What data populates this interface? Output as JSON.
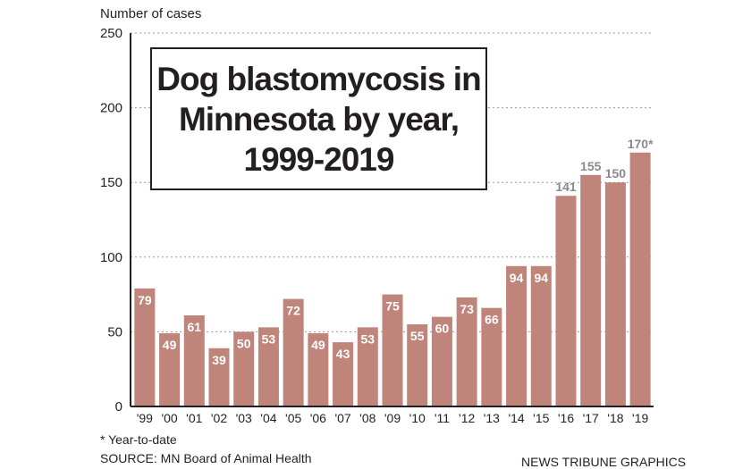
{
  "chart_data": {
    "type": "bar",
    "title": "Dog blastomycosis in\nMinnesota by year,\n1999-2019",
    "ylabel": "Number of cases",
    "ylim": [
      0,
      250
    ],
    "yticks": [
      0,
      50,
      100,
      150,
      200,
      250
    ],
    "grid": "horizontal dotted",
    "categories": [
      "'99",
      "'00",
      "'01",
      "'02",
      "'03",
      "'04",
      "'05",
      "'06",
      "'07",
      "'08",
      "'09",
      "'10",
      "'11",
      "'12",
      "'13",
      "'14",
      "'15",
      "'16",
      "'17",
      "'18",
      "'19"
    ],
    "values": [
      79,
      49,
      61,
      39,
      50,
      53,
      72,
      49,
      43,
      53,
      75,
      55,
      60,
      73,
      66,
      94,
      94,
      141,
      155,
      150,
      170
    ],
    "value_labels": [
      "79",
      "49",
      "61",
      "39",
      "50",
      "53",
      "72",
      "49",
      "43",
      "53",
      "75",
      "55",
      "60",
      "73",
      "66",
      "94",
      "94",
      "141",
      "155",
      "150",
      "170*"
    ],
    "bar_color": "#bf857a",
    "inside_label_color": "#ffffff",
    "outside_label_color": "#8a8a8a"
  },
  "footnote": "* Year-to-date",
  "source": "SOURCE: MN Board of Animal Health",
  "credit": "NEWS TRIBUNE GRAPHICS"
}
